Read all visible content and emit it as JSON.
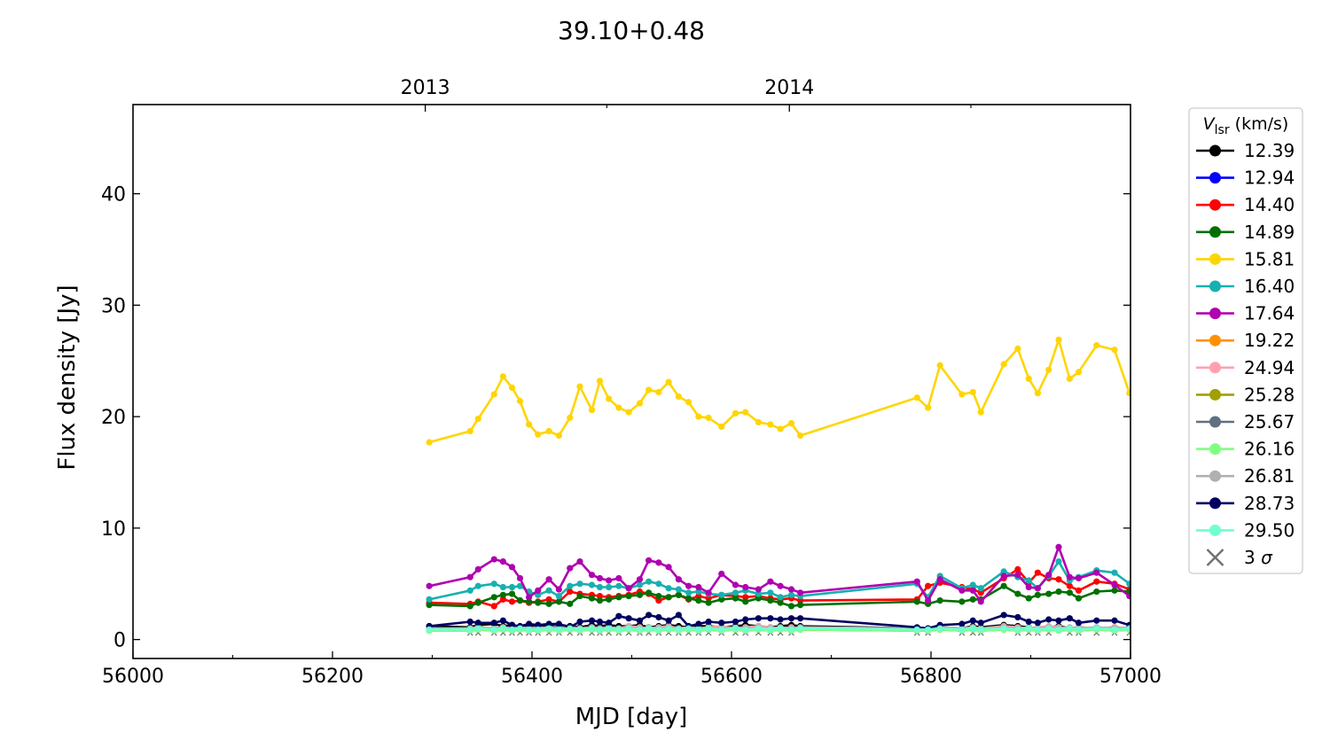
{
  "chart_data": {
    "type": "line",
    "title": "39.10+0.48",
    "xlabel": "MJD [day]",
    "ylabel": "Flux density [Jy]",
    "xlim": [
      56000,
      57000
    ],
    "ylim": [
      -1.7,
      48
    ],
    "x_ticks": [
      56000,
      56200,
      56400,
      56600,
      56800,
      57000
    ],
    "x_ticks_labels": [
      "56000",
      "56200",
      "56400",
      "56600",
      "56800",
      "57000"
    ],
    "x_minor_ticks": [
      56100,
      56300,
      56500,
      56700,
      56900
    ],
    "y_ticks": [
      0,
      10,
      20,
      30,
      40
    ],
    "y_ticks_labels": [
      "0",
      "10",
      "20",
      "30",
      "40"
    ],
    "top_axis": {
      "ticks": [
        56293,
        56658
      ],
      "labels": [
        "2013",
        "2014"
      ],
      "minor_ticks": [
        56475,
        56840
      ]
    },
    "grid": false,
    "legend": {
      "title_main": "V",
      "title_sub": "lsr",
      "title_unit": " (km/s)",
      "placement": "outside-right"
    },
    "x": [
      56297,
      56338,
      56346,
      56362,
      56371,
      56380,
      56388,
      56397,
      56406,
      56417,
      56427,
      56438,
      56448,
      56460,
      56468,
      56477,
      56487,
      56497,
      56508,
      56517,
      56527,
      56537,
      56547,
      56557,
      56567,
      56577,
      56590,
      56604,
      56614,
      56627,
      56639,
      56649,
      56660,
      56669,
      56786,
      56797,
      56809,
      56831,
      56842,
      56850,
      56873,
      56887,
      56898,
      56907,
      56918,
      56928,
      56939,
      56948,
      56966,
      56984,
      56999
    ],
    "series": [
      {
        "name": "12.39",
        "color": "#000000",
        "values": [
          1.2,
          1.1,
          1.3,
          1.4,
          1.2,
          1.3,
          1.1,
          1.2,
          1.3,
          1.2,
          1.3,
          1.2,
          1.1,
          1.3,
          1.2,
          1.3,
          1.2,
          1.2,
          1.3,
          1.1,
          1.2,
          1.3,
          1.2,
          1.1,
          1.2,
          1.2,
          1.1,
          1.2,
          1.3,
          1.2,
          1.1,
          1.2,
          1.3,
          1.2,
          1.0,
          1.0,
          1.1,
          1.0,
          1.2,
          1.1,
          1.3,
          1.2,
          1.1,
          1.0,
          1.1,
          1.2,
          1.0,
          1.1,
          1.0,
          1.1,
          1.0
        ]
      },
      {
        "name": "12.94",
        "color": "#0000ff",
        "values": [
          0.9,
          0.9,
          1.0,
          1.0,
          0.9,
          1.0,
          0.9,
          1.0,
          0.9,
          0.9,
          1.0,
          0.9,
          1.0,
          0.9,
          1.0,
          0.9,
          1.0,
          1.0,
          0.9,
          1.0,
          0.9,
          1.0,
          0.9,
          1.0,
          0.9,
          1.0,
          0.9,
          1.0,
          0.9,
          1.0,
          0.9,
          1.0,
          0.9,
          1.0,
          0.9,
          0.9,
          1.0,
          0.9,
          1.0,
          0.9,
          1.0,
          0.9,
          1.0,
          0.9,
          1.0,
          0.9,
          1.0,
          0.9,
          1.0,
          0.9,
          1.0
        ]
      },
      {
        "name": "14.40",
        "color": "#ff0000",
        "values": [
          3.3,
          3.2,
          3.4,
          3.0,
          3.6,
          3.4,
          3.5,
          3.3,
          3.4,
          3.6,
          3.4,
          4.3,
          4.1,
          4.0,
          3.9,
          3.8,
          3.9,
          4.0,
          4.3,
          4.1,
          3.5,
          3.8,
          4.0,
          3.6,
          3.9,
          3.7,
          4.0,
          3.9,
          3.8,
          3.9,
          3.7,
          3.6,
          3.7,
          3.5,
          3.6,
          4.8,
          5.1,
          4.7,
          4.5,
          4.2,
          5.5,
          6.3,
          5.1,
          6.0,
          5.5,
          5.4,
          4.8,
          4.4,
          5.2,
          5.0,
          4.5
        ]
      },
      {
        "name": "14.89",
        "color": "#007000",
        "values": [
          3.1,
          3.0,
          3.3,
          3.8,
          4.0,
          4.1,
          3.5,
          3.4,
          3.3,
          3.2,
          3.4,
          3.2,
          3.9,
          3.7,
          3.5,
          3.6,
          3.8,
          3.9,
          4.0,
          4.2,
          3.9,
          3.8,
          4.0,
          3.7,
          3.5,
          3.3,
          3.6,
          3.7,
          3.4,
          3.7,
          3.5,
          3.3,
          3.0,
          3.1,
          3.4,
          3.2,
          3.5,
          3.4,
          3.6,
          3.6,
          4.8,
          4.1,
          3.7,
          4.0,
          4.1,
          4.3,
          4.2,
          3.7,
          4.3,
          4.4,
          4.3
        ]
      },
      {
        "name": "15.81",
        "color": "#ffd500",
        "values": [
          17.7,
          18.7,
          19.8,
          22.0,
          23.6,
          22.6,
          21.4,
          19.3,
          18.4,
          18.7,
          18.3,
          19.9,
          22.7,
          20.6,
          23.2,
          21.6,
          20.8,
          20.4,
          21.2,
          22.4,
          22.2,
          23.1,
          21.8,
          21.3,
          20.0,
          19.9,
          19.1,
          20.3,
          20.4,
          19.5,
          19.3,
          18.9,
          19.4,
          18.3,
          21.7,
          20.8,
          24.6,
          22.0,
          22.2,
          20.4,
          24.7,
          26.1,
          23.4,
          22.1,
          24.2,
          26.9,
          23.4,
          24.0,
          26.4,
          26.0,
          22.1
        ]
      },
      {
        "name": "16.40",
        "color": "#17b0b0",
        "values": [
          3.6,
          4.4,
          4.8,
          5.0,
          4.7,
          4.7,
          4.8,
          4.3,
          4.0,
          4.4,
          3.9,
          4.8,
          5.0,
          4.9,
          4.7,
          4.7,
          4.8,
          4.6,
          4.9,
          5.2,
          5.0,
          4.6,
          4.5,
          4.2,
          4.3,
          4.1,
          4.0,
          4.2,
          4.4,
          4.1,
          4.2,
          3.8,
          4.0,
          3.9,
          5.0,
          3.8,
          5.7,
          4.6,
          4.9,
          4.6,
          6.1,
          5.6,
          5.3,
          4.6,
          5.7,
          7.0,
          5.3,
          5.6,
          6.2,
          6.0,
          5.0
        ]
      },
      {
        "name": "17.64",
        "color": "#b000b0",
        "values": [
          4.8,
          5.6,
          6.3,
          7.2,
          7.0,
          6.5,
          5.5,
          3.8,
          4.4,
          5.4,
          4.5,
          6.4,
          7.0,
          5.8,
          5.5,
          5.3,
          5.5,
          4.6,
          5.4,
          7.1,
          6.9,
          6.5,
          5.4,
          4.8,
          4.7,
          4.2,
          5.9,
          4.9,
          4.7,
          4.5,
          5.2,
          4.8,
          4.5,
          4.2,
          5.2,
          3.5,
          5.4,
          4.4,
          4.4,
          3.4,
          5.7,
          5.8,
          4.7,
          4.6,
          5.8,
          8.3,
          5.6,
          5.5,
          6.0,
          4.9,
          3.9
        ]
      },
      {
        "name": "19.22",
        "color": "#ff9000",
        "values": [
          0.9,
          0.8,
          0.9,
          0.8,
          0.9,
          0.8,
          0.9,
          0.8,
          0.8,
          0.9,
          0.8,
          0.9,
          0.8,
          0.9,
          0.8,
          0.9,
          0.8,
          0.9,
          0.8,
          0.9,
          0.8,
          0.9,
          0.8,
          0.9,
          0.8,
          0.9,
          0.8,
          0.9,
          0.8,
          0.9,
          0.8,
          0.9,
          0.8,
          0.9,
          0.8,
          0.8,
          0.9,
          0.8,
          0.9,
          0.8,
          0.9,
          0.8,
          0.9,
          0.8,
          0.9,
          0.8,
          0.9,
          0.8,
          0.9,
          0.8,
          0.9
        ]
      },
      {
        "name": "24.94",
        "color": "#ffa0b0",
        "values": [
          1.0,
          1.0,
          1.1,
          1.0,
          1.1,
          1.0,
          1.1,
          1.0,
          1.0,
          1.1,
          1.0,
          1.1,
          1.0,
          1.1,
          1.0,
          1.1,
          1.0,
          1.2,
          1.1,
          1.0,
          1.1,
          1.2,
          1.0,
          1.1,
          1.0,
          1.1,
          1.2,
          1.0,
          1.1,
          1.2,
          1.1,
          1.0,
          1.1,
          1.0,
          1.0,
          1.0,
          1.1,
          1.0,
          1.1,
          1.0,
          1.2,
          1.1,
          1.0,
          1.1,
          1.2,
          1.1,
          1.0,
          1.1,
          1.0,
          1.1,
          1.0
        ]
      },
      {
        "name": "25.28",
        "color": "#a0a000",
        "values": [
          0.8,
          0.8,
          0.9,
          0.8,
          0.9,
          0.8,
          0.9,
          0.8,
          0.8,
          0.9,
          0.8,
          0.9,
          0.8,
          0.9,
          0.8,
          0.9,
          0.8,
          0.9,
          0.8,
          0.9,
          0.8,
          0.9,
          0.8,
          0.9,
          0.8,
          0.9,
          0.8,
          0.9,
          0.8,
          0.9,
          0.8,
          0.9,
          0.8,
          0.9,
          0.8,
          0.8,
          0.9,
          0.8,
          0.9,
          0.8,
          0.9,
          0.8,
          0.9,
          0.8,
          0.9,
          0.8,
          0.9,
          0.8,
          0.9,
          0.8,
          0.9
        ]
      },
      {
        "name": "25.67",
        "color": "#607080",
        "values": [
          0.9,
          0.9,
          1.0,
          0.9,
          1.0,
          0.9,
          1.0,
          0.9,
          0.9,
          1.0,
          1.3,
          1.0,
          0.9,
          1.0,
          0.9,
          1.0,
          0.9,
          1.0,
          0.9,
          1.0,
          0.9,
          1.0,
          0.9,
          1.0,
          0.9,
          1.0,
          0.9,
          1.0,
          0.9,
          1.0,
          0.9,
          1.0,
          0.9,
          1.0,
          0.9,
          0.9,
          1.0,
          0.9,
          1.0,
          0.9,
          1.0,
          0.9,
          1.0,
          0.9,
          1.0,
          0.9,
          1.0,
          0.9,
          1.0,
          0.9,
          1.0
        ]
      },
      {
        "name": "26.16",
        "color": "#80ff80",
        "values": [
          0.8,
          0.8,
          0.9,
          0.8,
          0.9,
          0.8,
          0.9,
          0.8,
          0.8,
          0.9,
          0.8,
          0.9,
          0.8,
          0.9,
          0.8,
          0.9,
          0.8,
          0.9,
          0.8,
          0.9,
          0.8,
          0.9,
          0.8,
          0.9,
          0.8,
          0.9,
          0.8,
          0.9,
          0.8,
          0.9,
          0.8,
          0.9,
          0.8,
          0.9,
          0.8,
          0.8,
          0.9,
          0.8,
          0.9,
          0.8,
          0.9,
          0.8,
          0.9,
          0.8,
          0.9,
          0.8,
          0.9,
          0.8,
          0.9,
          0.8,
          0.9
        ]
      },
      {
        "name": "26.81",
        "color": "#b0b0b0",
        "values": [
          1.0,
          1.0,
          1.1,
          1.0,
          1.1,
          1.0,
          1.1,
          1.0,
          1.0,
          1.1,
          1.0,
          1.1,
          1.0,
          1.1,
          1.0,
          1.1,
          1.0,
          1.1,
          1.0,
          1.1,
          1.0,
          1.1,
          1.0,
          1.1,
          1.0,
          1.1,
          1.0,
          1.1,
          1.0,
          1.1,
          1.0,
          1.1,
          1.0,
          1.1,
          1.0,
          1.0,
          1.1,
          1.0,
          1.1,
          1.0,
          1.1,
          1.0,
          1.1,
          1.0,
          1.1,
          1.0,
          1.1,
          1.0,
          1.1,
          1.0,
          1.1
        ]
      },
      {
        "name": "28.73",
        "color": "#000060",
        "values": [
          1.2,
          1.6,
          1.5,
          1.5,
          1.7,
          1.3,
          1.2,
          1.4,
          1.3,
          1.4,
          1.4,
          1.1,
          1.6,
          1.7,
          1.6,
          1.5,
          2.1,
          1.9,
          1.7,
          2.2,
          2.0,
          1.7,
          2.2,
          1.2,
          1.4,
          1.6,
          1.5,
          1.6,
          1.8,
          1.9,
          1.9,
          1.8,
          1.9,
          1.9,
          1.1,
          1.0,
          1.3,
          1.4,
          1.7,
          1.5,
          2.2,
          2.0,
          1.6,
          1.5,
          1.8,
          1.7,
          1.9,
          1.5,
          1.7,
          1.7,
          1.3
        ]
      },
      {
        "name": "29.50",
        "color": "#70ffd0",
        "values": [
          0.9,
          0.9,
          1.0,
          0.9,
          1.0,
          0.9,
          1.0,
          0.9,
          0.9,
          1.0,
          0.9,
          1.0,
          0.9,
          1.0,
          0.9,
          1.0,
          0.9,
          1.0,
          0.9,
          1.0,
          0.9,
          1.0,
          0.9,
          1.0,
          0.9,
          1.0,
          0.9,
          1.0,
          0.9,
          1.0,
          0.9,
          1.0,
          0.9,
          1.0,
          0.9,
          0.9,
          1.0,
          0.9,
          1.0,
          0.9,
          1.0,
          0.9,
          1.0,
          0.9,
          1.0,
          0.9,
          1.0,
          0.9,
          1.0,
          0.9,
          1.0
        ]
      }
    ],
    "upper_limits": {
      "name": "3 σ",
      "symbol": "σ",
      "color": "#707070",
      "x": [
        56338,
        56346,
        56362,
        56371,
        56380,
        56388,
        56397,
        56406,
        56417,
        56427,
        56438,
        56448,
        56460,
        56468,
        56477,
        56487,
        56497,
        56508,
        56517,
        56527,
        56537,
        56547,
        56557,
        56567,
        56577,
        56590,
        56604,
        56614,
        56627,
        56639,
        56649,
        56660,
        56786,
        56797,
        56831,
        56842,
        56850,
        56887,
        56898,
        56907,
        56918,
        56939,
        56948,
        56966,
        56984,
        56999
      ],
      "value": 0.6
    }
  }
}
